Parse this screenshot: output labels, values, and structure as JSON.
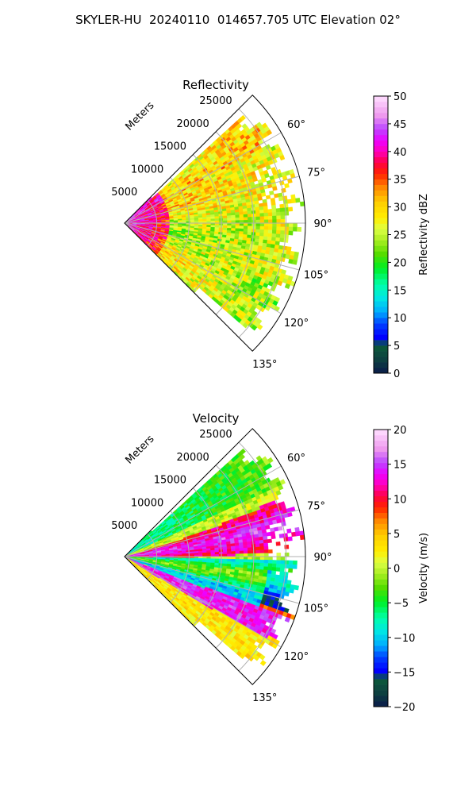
{
  "title": "SKYLER-HU  20240110  014657.705 UTC Elevation 02°",
  "chart_data": [
    {
      "type": "heatmap",
      "subtype": "radar-ppi-sector",
      "title": "Reflectivity",
      "radial_axis_label": "Meters",
      "range_ticks": [
        "5000",
        "10000",
        "15000",
        "20000",
        "25000"
      ],
      "range_tick_values": [
        5000,
        10000,
        15000,
        20000,
        25000
      ],
      "range_max": 28000,
      "azimuth_span_deg": [
        45,
        135
      ],
      "azimuth_ticks": [
        "60°",
        "75°",
        "90°",
        "105°",
        "120°",
        "135°"
      ],
      "azimuth_tick_values": [
        60,
        75,
        90,
        105,
        120,
        135
      ],
      "colorbar": {
        "label": "Reflectivity dBZ",
        "min": 0,
        "max": 50,
        "ticks": [
          "0",
          "5",
          "10",
          "15",
          "20",
          "25",
          "30",
          "35",
          "40",
          "45",
          "50"
        ],
        "tick_values": [
          0,
          5,
          10,
          15,
          20,
          25,
          30,
          35,
          40,
          45,
          50
        ]
      }
    },
    {
      "type": "heatmap",
      "subtype": "radar-ppi-sector",
      "title": "Velocity",
      "radial_axis_label": "Meters",
      "range_ticks": [
        "5000",
        "10000",
        "15000",
        "20000",
        "25000"
      ],
      "range_tick_values": [
        5000,
        10000,
        15000,
        20000,
        25000
      ],
      "range_max": 28000,
      "azimuth_span_deg": [
        45,
        135
      ],
      "azimuth_ticks": [
        "60°",
        "75°",
        "90°",
        "105°",
        "120°",
        "135°"
      ],
      "azimuth_tick_values": [
        60,
        75,
        90,
        105,
        120,
        135
      ],
      "colorbar": {
        "label": "Velocity (m/s)",
        "min": -20,
        "max": 20,
        "ticks": [
          "−20",
          "−15",
          "−10",
          "−5",
          "0",
          "5",
          "10",
          "15",
          "20"
        ],
        "tick_values": [
          -20,
          -15,
          -10,
          -5,
          0,
          5,
          10,
          15,
          20
        ]
      }
    }
  ],
  "colors": {
    "grid": "#b0b0b0",
    "frame": "#000000",
    "background": "#ffffff"
  }
}
